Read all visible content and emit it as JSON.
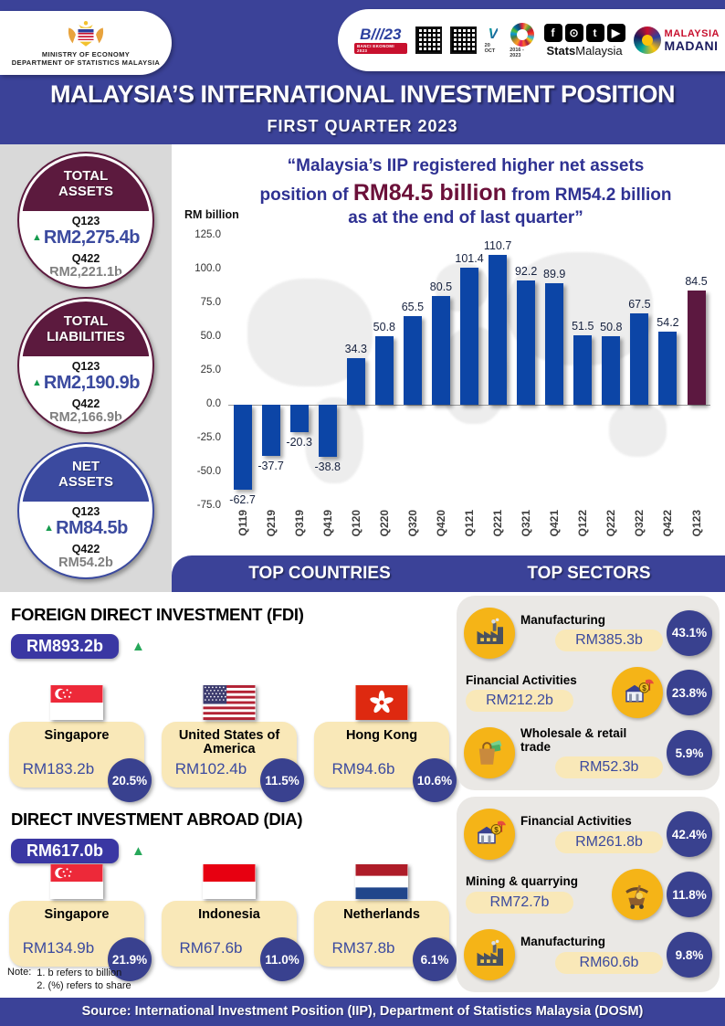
{
  "header": {
    "ministry_line1": "MINISTRY OF ECONOMY",
    "ministry_line2": "DEPARTMENT OF STATISTICS MALAYSIA",
    "title": "MALAYSIA’S INTERNATIONAL INVESTMENT POSITION",
    "subtitle": "FIRST QUARTER 2023",
    "banci_logo_text": "B///23",
    "banci_logo_caption": "BANCI EKONOMI 2023",
    "oct_caption": "20 OCT",
    "sdg_caption": "2016 - 2023",
    "stats_brand_bold": "Stats",
    "stats_brand_rest": "Malaysia",
    "madani_line1": "MALAYSIA",
    "madani_line2": "MADANI"
  },
  "summary_circles": [
    {
      "title": "TOTAL\nASSETS",
      "theme": "maroon",
      "q1_label": "Q123",
      "q1_value": "RM2,275.4b",
      "q2_label": "Q422",
      "q2_value": "RM2,221.1b"
    },
    {
      "title": "TOTAL\nLIABILITIES",
      "theme": "maroon",
      "q1_label": "Q123",
      "q1_value": "RM2,190.9b",
      "q2_label": "Q422",
      "q2_value": "RM2,166.9b"
    },
    {
      "title": "NET\nASSETS",
      "theme": "blue",
      "q1_label": "Q123",
      "q1_value": "RM84.5b",
      "q2_label": "Q422",
      "q2_value": "RM54.2b"
    }
  ],
  "quote": {
    "line1": "“Malaysia’s IIP registered higher net assets",
    "line2_pre": "position of ",
    "line2_big": "RM84.5 billion",
    "line2_post": " from RM54.2 billion",
    "line3": "as at the end of last quarter”"
  },
  "chart_data": {
    "type": "bar",
    "ylabel": "RM billion",
    "ylim": [
      -75,
      125
    ],
    "ytick_step": 25,
    "grid": false,
    "value_labels": true,
    "categories": [
      "Q119",
      "Q219",
      "Q319",
      "Q419",
      "Q120",
      "Q220",
      "Q320",
      "Q420",
      "Q121",
      "Q221",
      "Q321",
      "Q421",
      "Q122",
      "Q222",
      "Q322",
      "Q422",
      "Q123"
    ],
    "values": [
      -62.7,
      -37.7,
      -20.3,
      -38.8,
      34.3,
      50.8,
      65.5,
      80.5,
      101.4,
      110.7,
      92.2,
      89.9,
      51.5,
      50.8,
      67.5,
      54.2,
      84.5
    ],
    "highlight_category": "Q123",
    "bar_color": "#0C45A6",
    "highlight_color": "#5C1840"
  },
  "bands": {
    "top_countries": "TOP COUNTRIES",
    "top_sectors": "TOP SECTORS"
  },
  "fdi": {
    "title": "FOREIGN DIRECT INVESTMENT (FDI)",
    "total": "RM893.2b",
    "trend": "up",
    "countries": [
      {
        "name": "Singapore",
        "flag": "sg",
        "value": "RM183.2b",
        "share": "20.5%"
      },
      {
        "name": "United States of America",
        "flag": "us",
        "value": "RM102.4b",
        "share": "11.5%"
      },
      {
        "name": "Hong Kong",
        "flag": "hk",
        "value": "RM94.6b",
        "share": "10.6%"
      }
    ]
  },
  "dia": {
    "title": "DIRECT INVESTMENT ABROAD (DIA)",
    "total": "RM617.0b",
    "trend": "up",
    "countries": [
      {
        "name": "Singapore",
        "flag": "sg",
        "value": "RM134.9b",
        "share": "21.9%"
      },
      {
        "name": "Indonesia",
        "flag": "id",
        "value": "RM67.6b",
        "share": "11.0%"
      },
      {
        "name": "Netherlands",
        "flag": "nl",
        "value": "RM37.8b",
        "share": "6.1%"
      }
    ]
  },
  "sectors_fdi": [
    {
      "name": "Manufacturing",
      "icon": "factory",
      "value": "RM385.3b",
      "share": "43.1%",
      "icon_side": "left"
    },
    {
      "name": "Financial Activities",
      "icon": "finance",
      "value": "RM212.2b",
      "share": "23.8%",
      "icon_side": "right"
    },
    {
      "name": "Wholesale & retail trade",
      "icon": "retail",
      "value": "RM52.3b",
      "share": "5.9%",
      "icon_side": "left"
    }
  ],
  "sectors_dia": [
    {
      "name": "Financial Activities",
      "icon": "finance",
      "value": "RM261.8b",
      "share": "42.4%",
      "icon_side": "left"
    },
    {
      "name": "Mining & quarrying",
      "icon": "mining",
      "value": "RM72.7b",
      "share": "11.8%",
      "icon_side": "right"
    },
    {
      "name": "Manufacturing",
      "icon": "factory",
      "value": "RM60.6b",
      "share": "9.8%",
      "icon_side": "left"
    }
  ],
  "note": {
    "label": "Note:",
    "line1": "1. b refers to billion",
    "line2": "2. (%) refers to share"
  },
  "footer": {
    "source": "Source: International Investment Position (IIP), Department of Statistics Malaysia (DOSM)"
  },
  "colors": {
    "primary_blue": "#3B4298",
    "bar_blue": "#0C45A6",
    "highlight_maroon": "#5C1840",
    "circle_maroon": "#5C1A3E",
    "circle_blue": "#3B4A9F",
    "value_blue": "#3B4A9F",
    "cream": "#F9E8B8",
    "sector_yellow": "#F5B417",
    "percent_blue": "#39418F",
    "increase_green": "#169B4E"
  }
}
